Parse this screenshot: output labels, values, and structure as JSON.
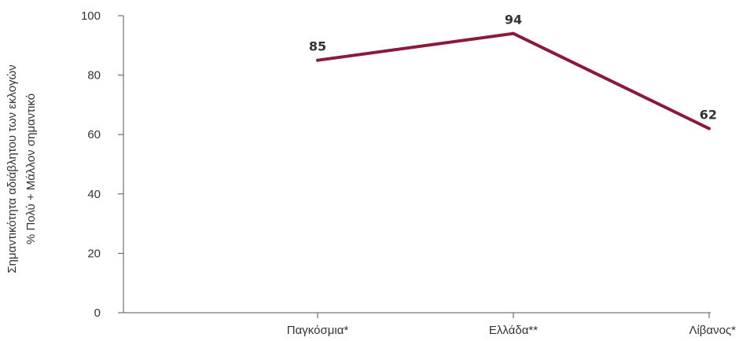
{
  "chart_data": {
    "type": "line",
    "title": "",
    "xlabel": "",
    "ylabel_lines": [
      "Σημαντικότητα αδιάβλητου των εκλογών",
      "% Πολύ + Μάλλον σημαντικό"
    ],
    "categories": [
      "Παγκόσμια*",
      "Ελλάδα**",
      "Λίβανος*"
    ],
    "series": [
      {
        "values": [
          85,
          94,
          62
        ],
        "data_labels": [
          "85",
          "94",
          "62"
        ]
      }
    ],
    "ylim": [
      0,
      100
    ],
    "yticks": [
      0,
      20,
      40,
      60,
      80,
      100
    ],
    "ytick_labels": [
      "0",
      "20",
      "40",
      "60",
      "80",
      "100"
    ],
    "grid": false,
    "line_color": "#8b1a3a",
    "axis_color": "#555555"
  }
}
